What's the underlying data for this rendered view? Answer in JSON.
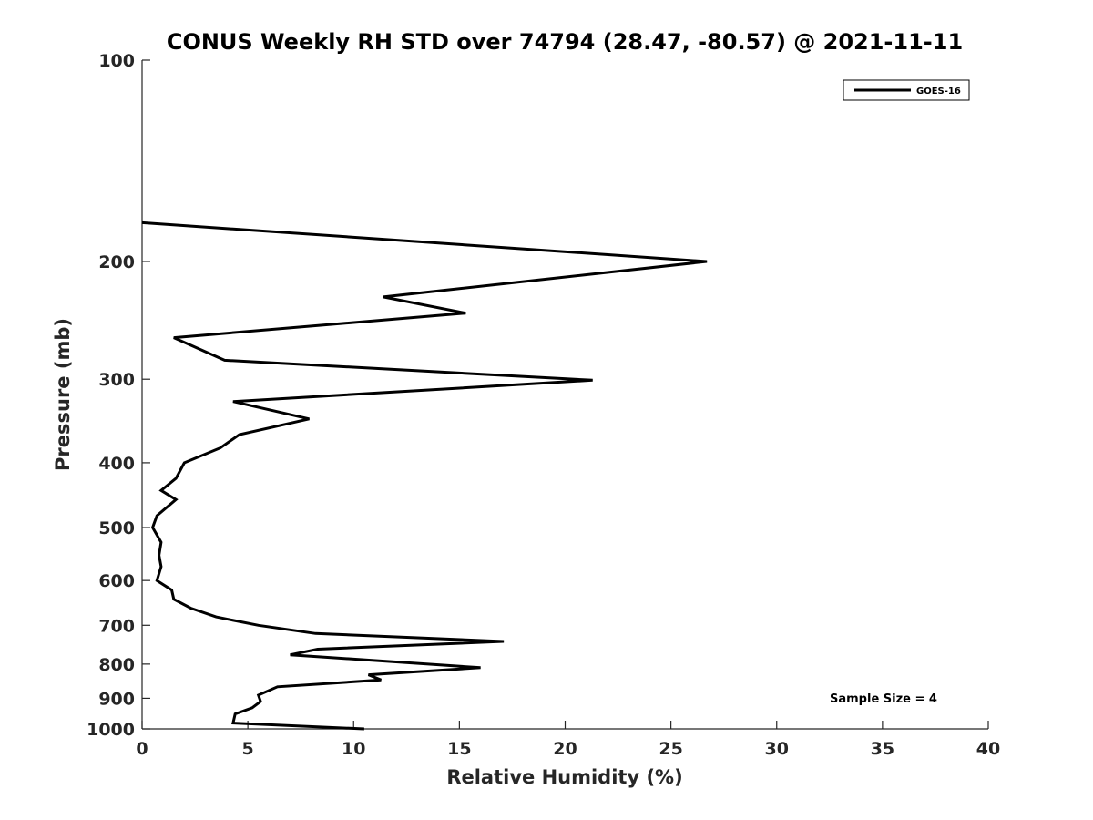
{
  "chart_data": {
    "type": "line",
    "title": "CONUS Weekly RH STD over 74794 (28.47, -80.57) @ 2021-11-11",
    "xlabel": "Relative Humidity (%)",
    "ylabel": "Pressure (mb)",
    "xlim": [
      0,
      40
    ],
    "ylim": [
      100,
      1000
    ],
    "y_scale": "log",
    "y_direction": "reversed",
    "x_ticks": [
      0,
      5,
      10,
      15,
      20,
      25,
      30,
      35,
      40
    ],
    "y_ticks": [
      100,
      200,
      300,
      400,
      500,
      600,
      700,
      800,
      900,
      1000
    ],
    "grid": false,
    "legend_position": "top-right",
    "series": [
      {
        "name": "GOES-16",
        "color": "#000000",
        "points": [
          {
            "x": 0.0,
            "p": 175
          },
          {
            "x": 26.7,
            "p": 200
          },
          {
            "x": 11.4,
            "p": 226
          },
          {
            "x": 15.3,
            "p": 239
          },
          {
            "x": 1.5,
            "p": 260
          },
          {
            "x": 3.9,
            "p": 281
          },
          {
            "x": 21.3,
            "p": 301
          },
          {
            "x": 4.3,
            "p": 324
          },
          {
            "x": 7.9,
            "p": 344
          },
          {
            "x": 4.6,
            "p": 363
          },
          {
            "x": 3.7,
            "p": 380
          },
          {
            "x": 2.0,
            "p": 400
          },
          {
            "x": 1.6,
            "p": 422
          },
          {
            "x": 0.9,
            "p": 440
          },
          {
            "x": 1.6,
            "p": 454
          },
          {
            "x": 0.7,
            "p": 480
          },
          {
            "x": 0.5,
            "p": 500
          },
          {
            "x": 0.9,
            "p": 526
          },
          {
            "x": 0.8,
            "p": 550
          },
          {
            "x": 0.9,
            "p": 572
          },
          {
            "x": 0.7,
            "p": 600
          },
          {
            "x": 1.4,
            "p": 620
          },
          {
            "x": 1.5,
            "p": 640
          },
          {
            "x": 2.3,
            "p": 660
          },
          {
            "x": 3.5,
            "p": 680
          },
          {
            "x": 5.5,
            "p": 700
          },
          {
            "x": 8.2,
            "p": 720
          },
          {
            "x": 17.1,
            "p": 740
          },
          {
            "x": 8.3,
            "p": 760
          },
          {
            "x": 7.0,
            "p": 775
          },
          {
            "x": 16.0,
            "p": 810
          },
          {
            "x": 10.7,
            "p": 830
          },
          {
            "x": 11.3,
            "p": 845
          },
          {
            "x": 6.4,
            "p": 865
          },
          {
            "x": 5.5,
            "p": 890
          },
          {
            "x": 5.6,
            "p": 910
          },
          {
            "x": 5.2,
            "p": 930
          },
          {
            "x": 4.4,
            "p": 950
          },
          {
            "x": 4.3,
            "p": 980
          },
          {
            "x": 10.5,
            "p": 1000
          }
        ]
      }
    ],
    "annotations": [
      {
        "text": "Sample Size = 4",
        "position": "bottom-right"
      }
    ]
  }
}
